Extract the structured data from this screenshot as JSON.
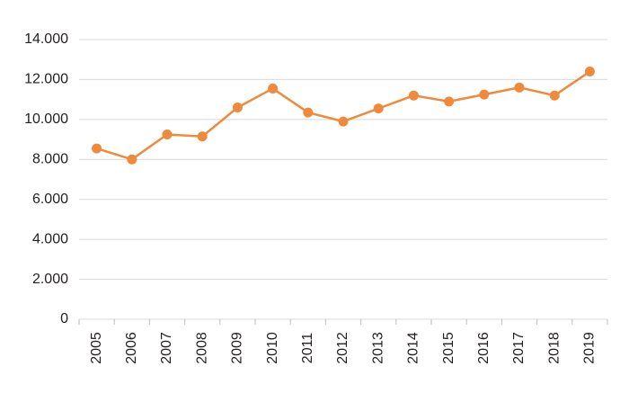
{
  "chart_data": {
    "type": "line",
    "categories": [
      "2005",
      "2006",
      "2007",
      "2008",
      "2009",
      "2010",
      "2011",
      "2012",
      "2013",
      "2014",
      "2015",
      "2016",
      "2017",
      "2018",
      "2019"
    ],
    "series": [
      {
        "color": "#ef8a3c",
        "values": [
          8550,
          8000,
          9250,
          9150,
          10600,
          11550,
          10350,
          9900,
          10550,
          11200,
          10900,
          11250,
          11600,
          11200,
          12400
        ]
      }
    ],
    "ylim": [
      0,
      14000
    ],
    "yticks": [
      0,
      {
        "value": 2000,
        "label": "2.000"
      },
      {
        "value": 4000,
        "label": "4.000"
      },
      {
        "value": 6000,
        "label": "6.000"
      },
      {
        "value": 8000,
        "label": "8.000"
      },
      {
        "value": 10000,
        "label": "10.000"
      },
      {
        "value": 12000,
        "label": "12.000"
      },
      {
        "value": 14000,
        "label": "14.000"
      }
    ],
    "grid": true
  }
}
